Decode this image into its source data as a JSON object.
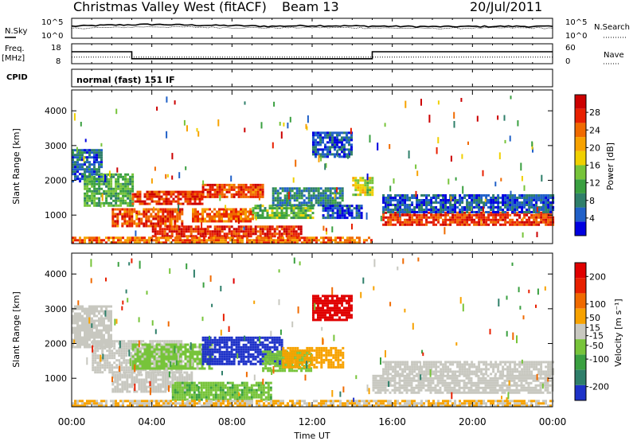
{
  "header": {
    "station": "Christmas Valley West (fitACF)",
    "beam": "Beam 13",
    "date": "20/Jul/2011",
    "mode": "normal (fast) 151 IF",
    "cpid_label": "CPID"
  },
  "left_labels": {
    "nsky": "N.Sky",
    "freq": "Freq.",
    "freq_unit": "[MHz]"
  },
  "right_labels": {
    "nsearch": "N.Search",
    "nave": "Nave"
  },
  "noise_panel": {
    "y_ticks_left": [
      "10^5",
      "10^0"
    ],
    "y_ticks_right": [
      "10^5",
      "10^0"
    ]
  },
  "freq_panel": {
    "y_ticks_left": [
      "18",
      "8"
    ],
    "y_ticks_right": [
      "60",
      "0"
    ]
  },
  "x_axis": {
    "label": "Time UT",
    "ticks": [
      "00:00",
      "04:00",
      "08:00",
      "12:00",
      "16:00",
      "20:00",
      "00:00"
    ]
  },
  "chart_data": [
    {
      "type": "line",
      "name": "noise-panel",
      "series": [
        {
          "name": "N.Sky",
          "x": [
            0,
            2,
            4,
            6,
            8,
            10,
            12,
            14,
            16,
            18,
            20,
            22,
            24
          ],
          "values": [
            1000,
            2000,
            3000,
            2000,
            1500,
            1000,
            1500,
            1200,
            1000,
            800,
            900,
            1000,
            900
          ]
        },
        {
          "name": "N.Search",
          "x": [
            0,
            2,
            4,
            6,
            8,
            10,
            12,
            14,
            16,
            18,
            20,
            22,
            24
          ],
          "values": [
            300,
            500,
            800,
            600,
            500,
            400,
            500,
            450,
            350,
            300,
            350,
            400,
            350
          ]
        }
      ],
      "ylim_left": [
        1,
        100000
      ],
      "xlim": [
        0,
        24
      ],
      "y_scale": "log"
    },
    {
      "type": "line",
      "name": "frequency-panel",
      "series": [
        {
          "name": "Freq.",
          "x": [
            0,
            3.0,
            3.0,
            15.0,
            15.0,
            24
          ],
          "values": [
            14,
            14,
            10.5,
            10.5,
            14,
            14
          ]
        },
        {
          "name": "Nave",
          "x": [
            0,
            24
          ],
          "values": [
            20,
            20
          ]
        }
      ],
      "ylim_left": [
        8,
        18
      ],
      "ylim_right": [
        0,
        60
      ],
      "xlim": [
        0,
        24
      ]
    },
    {
      "type": "heatmap",
      "name": "power-panel",
      "xlabel": "",
      "ylabel": "Slant Range [km]",
      "xlim": [
        0,
        24
      ],
      "ylim": [
        180,
        4600
      ],
      "y_ticks": [
        1000,
        2000,
        3000,
        4000
      ],
      "colorbar": {
        "label": "Power [dB]",
        "range": [
          0,
          32
        ],
        "ticks": [
          4,
          8,
          12,
          16,
          20,
          24,
          28
        ],
        "colors": [
          "#0000e0",
          "#2060c8",
          "#2f7f6a",
          "#3aa040",
          "#77c43a",
          "#f0d000",
          "#f7a200",
          "#f06a00",
          "#e82000",
          "#cc0000"
        ]
      },
      "regions": [
        {
          "t0": 0.0,
          "t1": 1.5,
          "r0": 2000,
          "r1": 2900,
          "v": 6
        },
        {
          "t0": 0.6,
          "t1": 3.0,
          "r0": 1300,
          "r1": 2200,
          "v": 12
        },
        {
          "t0": 2.0,
          "t1": 5.5,
          "r0": 700,
          "r1": 1200,
          "v": 26
        },
        {
          "t0": 3.0,
          "t1": 6.5,
          "r0": 1300,
          "r1": 1700,
          "v": 27
        },
        {
          "t0": 4.0,
          "t1": 11.5,
          "r0": 400,
          "r1": 700,
          "v": 28
        },
        {
          "t0": 6.0,
          "t1": 9.0,
          "r0": 800,
          "r1": 1200,
          "v": 24
        },
        {
          "t0": 6.5,
          "t1": 9.5,
          "r0": 1500,
          "r1": 1900,
          "v": 26
        },
        {
          "t0": 9.0,
          "t1": 12.0,
          "r0": 900,
          "r1": 1300,
          "v": 13
        },
        {
          "t0": 10.0,
          "t1": 13.5,
          "r0": 1300,
          "r1": 1800,
          "v": 8
        },
        {
          "t0": 12.5,
          "t1": 14.5,
          "r0": 900,
          "r1": 1300,
          "v": 5
        },
        {
          "t0": 14.0,
          "t1": 15.0,
          "r0": 1600,
          "r1": 2100,
          "v": 16
        },
        {
          "t0": 15.5,
          "t1": 24.0,
          "r0": 700,
          "r1": 1100,
          "v": 27
        },
        {
          "t0": 15.5,
          "t1": 24.0,
          "r0": 1100,
          "r1": 1600,
          "v": 5
        },
        {
          "t0": 0.0,
          "t1": 15.0,
          "r0": 190,
          "r1": 380,
          "v": 24
        },
        {
          "t0": 12.0,
          "t1": 14.0,
          "r0": 2700,
          "r1": 3400,
          "v": 5
        }
      ]
    },
    {
      "type": "heatmap",
      "name": "velocity-panel",
      "xlabel": "Time UT",
      "ylabel": "Slant Range [km]",
      "xlim": [
        0,
        24
      ],
      "ylim": [
        180,
        4600
      ],
      "y_ticks": [
        1000,
        2000,
        3000,
        4000
      ],
      "colorbar": {
        "label": "Velocity [m s⁻¹]",
        "range": [
          -250,
          250
        ],
        "ticks": [
          200,
          100,
          50,
          15,
          -15,
          -50,
          -100,
          -200
        ],
        "colors": [
          "#1e32c8",
          "#2f7f6a",
          "#3aa040",
          "#77c43a",
          "#c8c8c0",
          "#f7a200",
          "#f06a00",
          "#e82000",
          "#e00000"
        ]
      },
      "regions": [
        {
          "t0": 0.0,
          "t1": 2.0,
          "r0": 1900,
          "r1": 3100,
          "v": 0
        },
        {
          "t0": 1.0,
          "t1": 5.5,
          "r0": 1200,
          "r1": 2100,
          "v": 0
        },
        {
          "t0": 2.0,
          "t1": 6.0,
          "r0": 600,
          "r1": 1200,
          "v": 0
        },
        {
          "t0": 3.0,
          "t1": 7.0,
          "r0": 1300,
          "r1": 2000,
          "v": -40
        },
        {
          "t0": 5.0,
          "t1": 10.0,
          "r0": 400,
          "r1": 900,
          "v": -70
        },
        {
          "t0": 6.5,
          "t1": 10.5,
          "r0": 1400,
          "r1": 2200,
          "v": -220
        },
        {
          "t0": 9.5,
          "t1": 12.0,
          "r0": 1200,
          "r1": 1800,
          "v": -60
        },
        {
          "t0": 10.5,
          "t1": 13.5,
          "r0": 1300,
          "r1": 1900,
          "v": 60
        },
        {
          "t0": 12.0,
          "t1": 14.0,
          "r0": 2700,
          "r1": 3400,
          "v": 220
        },
        {
          "t0": 15.0,
          "t1": 24.0,
          "r0": 600,
          "r1": 1100,
          "v": 0
        },
        {
          "t0": 15.5,
          "t1": 24.0,
          "r0": 1100,
          "r1": 1500,
          "v": 0
        },
        {
          "t0": 0.0,
          "t1": 24.0,
          "r0": 190,
          "r1": 380,
          "v": 30
        }
      ]
    }
  ]
}
